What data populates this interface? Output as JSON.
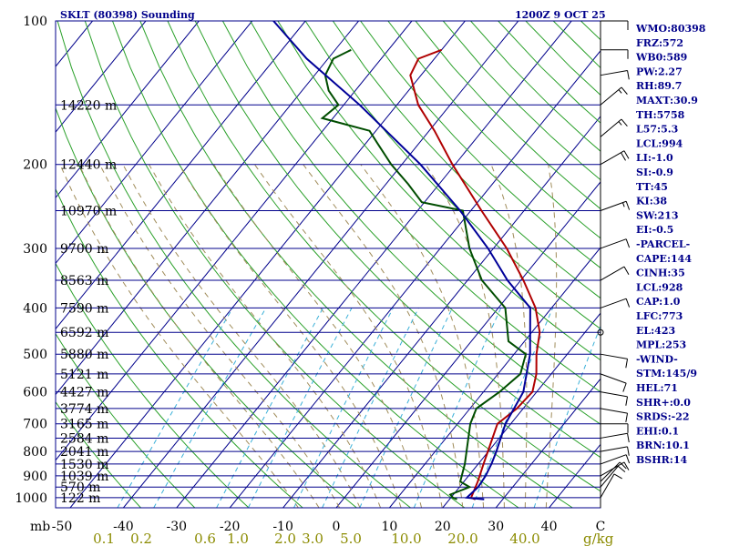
{
  "header": {
    "title": "SKLT (80398) Sounding",
    "time": "1200Z  9 OCT 25"
  },
  "indices": [
    "WMO:80398",
    "FRZ:572",
    "WB0:589",
    "PW:2.27",
    "RH:89.7",
    "MAXT:30.9",
    "TH:5758",
    "L57:5.3",
    "LCL:994",
    "LI:-1.0",
    "SI:-0.9",
    "TT:45",
    "KI:38",
    "SW:213",
    "EI:-0.5",
    "-PARCEL-",
    "CAPE:144",
    "CINH:35",
    "LCL:928",
    "CAP:1.0",
    "LFC:773",
    "EL:423",
    "MPL:253",
    "-WIND-",
    "STM:145/9",
    "HEL:71",
    "SHR+:0.0",
    "SRDS:-22",
    "EHI:0.1",
    "BRN:10.1",
    "BSHR:14"
  ],
  "chart_data": {
    "type": "line",
    "title": "SKLT (80398) Sounding",
    "ylabel": "mb",
    "xlabel": "C",
    "mixing_ratio_unit": "g/kg",
    "pressure_ticks": [
      {
        "p": 100,
        "label": "100"
      },
      {
        "p": 200,
        "label": "200"
      },
      {
        "p": 300,
        "label": "300"
      },
      {
        "p": 400,
        "label": "400"
      },
      {
        "p": 500,
        "label": "500"
      },
      {
        "p": 600,
        "label": "600"
      },
      {
        "p": 700,
        "label": "700"
      },
      {
        "p": 800,
        "label": "800"
      },
      {
        "p": 900,
        "label": "900"
      },
      {
        "p": 1000,
        "label": "1000"
      }
    ],
    "temp_ticks": [
      {
        "t": -50,
        "label": "-50"
      },
      {
        "t": -40,
        "label": "-40"
      },
      {
        "t": -30,
        "label": "-30"
      },
      {
        "t": -20,
        "label": "-20"
      },
      {
        "t": -10,
        "label": "-10"
      },
      {
        "t": 0,
        "label": "0"
      },
      {
        "t": 10,
        "label": "10"
      },
      {
        "t": 20,
        "label": "20"
      },
      {
        "t": 30,
        "label": "30"
      },
      {
        "t": 40,
        "label": "40"
      }
    ],
    "mixing_ratio_labels": [
      {
        "w": 0.1,
        "label": "0.1"
      },
      {
        "w": 0.2,
        "label": "0.2"
      },
      {
        "w": 0.6,
        "label": "0.6"
      },
      {
        "w": 1.0,
        "label": "1.0"
      },
      {
        "w": 2.0,
        "label": "2.0"
      },
      {
        "w": 3.0,
        "label": "3.0"
      },
      {
        "w": 5.0,
        "label": "5.0"
      },
      {
        "w": 10.0,
        "label": "10.0"
      },
      {
        "w": 20.0,
        "label": "20.0"
      },
      {
        "w": 40.0,
        "label": "40.0"
      }
    ],
    "height_levels": [
      {
        "p": 150,
        "label": "14220 m"
      },
      {
        "p": 200,
        "label": "12440 m"
      },
      {
        "p": 250,
        "label": "10970 m"
      },
      {
        "p": 300,
        "label": "9700 m"
      },
      {
        "p": 350,
        "label": "8563 m"
      },
      {
        "p": 400,
        "label": "7590 m"
      },
      {
        "p": 450,
        "label": "6592 m"
      },
      {
        "p": 500,
        "label": "5880 m"
      },
      {
        "p": 550,
        "label": "5121 m"
      },
      {
        "p": 600,
        "label": "4427 m"
      },
      {
        "p": 650,
        "label": "3774 m"
      },
      {
        "p": 700,
        "label": "3165 m"
      },
      {
        "p": 750,
        "label": "2584 m"
      },
      {
        "p": 800,
        "label": "2041 m"
      },
      {
        "p": 850,
        "label": "1530 m"
      },
      {
        "p": 900,
        "label": "1039 m"
      },
      {
        "p": 950,
        "label": "570 m"
      },
      {
        "p": 1000,
        "label": "122 m"
      }
    ],
    "series": [
      {
        "name": "Temperature",
        "color": "#b00000",
        "points": [
          [
            1008,
            24.8
          ],
          [
            1000,
            23.8
          ],
          [
            925,
            22.6
          ],
          [
            850,
            21.0
          ],
          [
            700,
            17.5
          ],
          [
            650,
            18.8
          ],
          [
            600,
            19.2
          ],
          [
            550,
            17.2
          ],
          [
            500,
            14.2
          ],
          [
            450,
            11.5
          ],
          [
            400,
            7.0
          ],
          [
            350,
            0.5
          ],
          [
            300,
            -7.5
          ],
          [
            250,
            -18.0
          ],
          [
            200,
            -30.5
          ],
          [
            170,
            -39.0
          ],
          [
            150,
            -46.0
          ],
          [
            130,
            -52.0
          ],
          [
            120,
            -53.0
          ],
          [
            115,
            -50.0
          ]
        ]
      },
      {
        "name": "Dewpoint",
        "color": "#004d00",
        "points": [
          [
            1008,
            21.4
          ],
          [
            1000,
            20.4
          ],
          [
            985,
            19.4
          ],
          [
            950,
            21.9
          ],
          [
            925,
            19.3
          ],
          [
            850,
            17.5
          ],
          [
            700,
            12.4
          ],
          [
            650,
            11.2
          ],
          [
            600,
            13.0
          ],
          [
            550,
            14.2
          ],
          [
            500,
            12.2
          ],
          [
            470,
            7.0
          ],
          [
            400,
            1.3
          ],
          [
            350,
            -7.3
          ],
          [
            300,
            -14.5
          ],
          [
            250,
            -21.5
          ],
          [
            240,
            -30.5
          ],
          [
            220,
            -35.8
          ],
          [
            200,
            -42.0
          ],
          [
            180,
            -48.0
          ],
          [
            170,
            -51.2
          ],
          [
            160,
            -62.0
          ],
          [
            150,
            -61.0
          ],
          [
            140,
            -65.0
          ],
          [
            130,
            -68.0
          ],
          [
            120,
            -69.0
          ],
          [
            115,
            -67.0
          ]
        ]
      },
      {
        "name": "Parcel",
        "color": "#000099",
        "points": [
          [
            1008,
            26.5
          ],
          [
            1000,
            23.0
          ],
          [
            950,
            23.5
          ],
          [
            900,
            23.2
          ],
          [
            850,
            22.5
          ],
          [
            800,
            21.5
          ],
          [
            700,
            19.0
          ],
          [
            600,
            17.5
          ],
          [
            500,
            13.0
          ],
          [
            400,
            6.0
          ],
          [
            350,
            -2.5
          ],
          [
            300,
            -11.0
          ],
          [
            250,
            -22.0
          ],
          [
            200,
            -36.5
          ],
          [
            150,
            -57.0
          ],
          [
            120,
            -74.0
          ],
          [
            100,
            -86.0
          ]
        ]
      }
    ],
    "wind_barbs": [
      {
        "p": 1000,
        "dir": 30,
        "spd": 10
      },
      {
        "p": 950,
        "dir": 40,
        "spd": 12
      },
      {
        "p": 925,
        "dir": 45,
        "spd": 10
      },
      {
        "p": 900,
        "dir": 60,
        "spd": 10
      },
      {
        "p": 850,
        "dir": 70,
        "spd": 10
      },
      {
        "p": 800,
        "dir": 80,
        "spd": 10
      },
      {
        "p": 750,
        "dir": 80,
        "spd": 12
      },
      {
        "p": 700,
        "dir": 90,
        "spd": 10
      },
      {
        "p": 650,
        "dir": 100,
        "spd": 10
      },
      {
        "p": 600,
        "dir": 100,
        "spd": 10
      },
      {
        "p": 550,
        "dir": 110,
        "spd": 10
      },
      {
        "p": 500,
        "dir": 100,
        "spd": 10
      },
      {
        "p": 450,
        "dir": 0,
        "spd": 0
      },
      {
        "p": 400,
        "dir": 70,
        "spd": 10
      },
      {
        "p": 350,
        "dir": 60,
        "spd": 10
      },
      {
        "p": 300,
        "dir": 70,
        "spd": 10
      },
      {
        "p": 250,
        "dir": 70,
        "spd": 15
      },
      {
        "p": 200,
        "dir": 60,
        "spd": 20
      },
      {
        "p": 175,
        "dir": 50,
        "spd": 15
      },
      {
        "p": 150,
        "dir": 50,
        "spd": 15
      },
      {
        "p": 130,
        "dir": 80,
        "spd": 10
      },
      {
        "p": 115,
        "dir": 90,
        "spd": 10
      },
      {
        "p": 100,
        "dir": 90,
        "spd": 10
      }
    ]
  }
}
